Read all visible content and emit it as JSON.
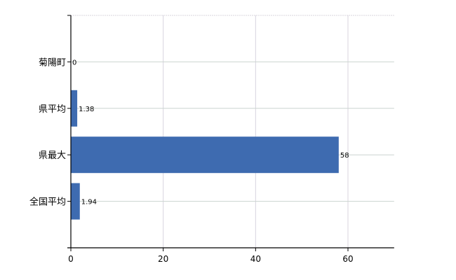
{
  "chart_data": {
    "type": "bar",
    "orientation": "horizontal",
    "categories": [
      "菊陽町",
      "県平均",
      "県最大",
      "全国平均"
    ],
    "values": [
      0,
      1.38,
      58,
      1.94
    ],
    "value_labels": [
      "0",
      "1.38",
      "58",
      "1.94"
    ],
    "x_ticks": [
      "0",
      "20",
      "40",
      "60"
    ],
    "xlim": [
      0,
      70
    ],
    "grid": true,
    "bar_color": "#3e6bb0",
    "title": "",
    "xlabel": "",
    "ylabel": ""
  }
}
